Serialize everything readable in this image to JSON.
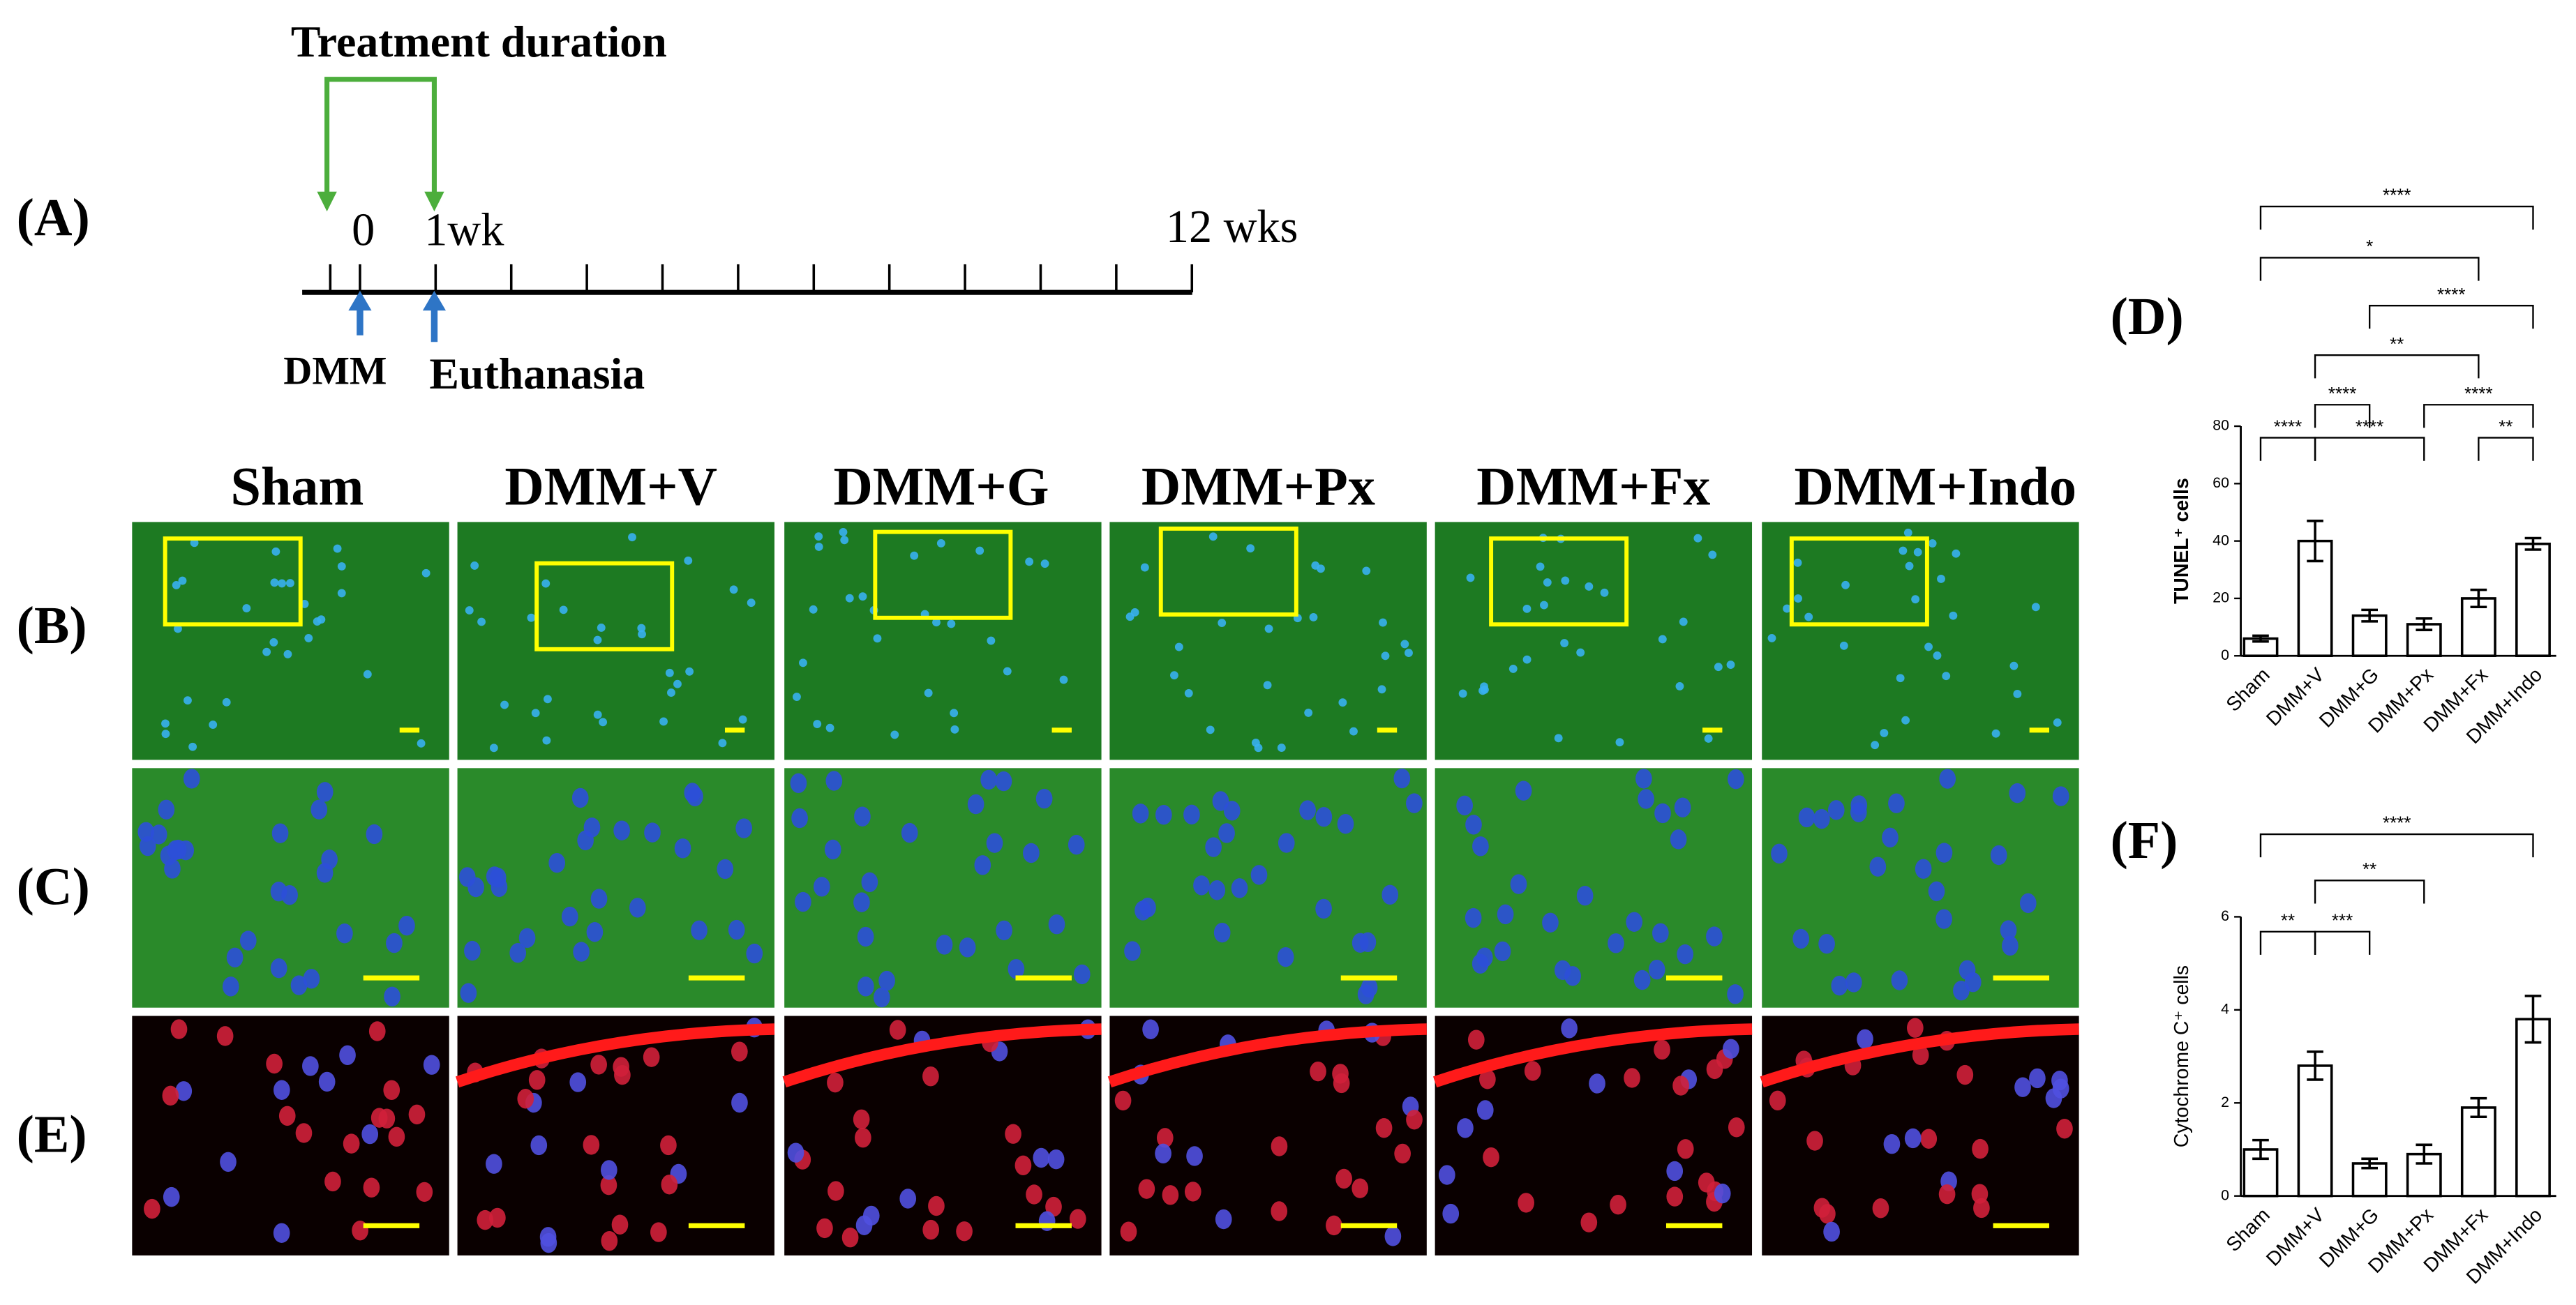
{
  "timeline": {
    "title": "Treatment duration",
    "start": "0",
    "week1": "1wk",
    "end": "12 wks",
    "surgery": "DMM",
    "euthanasia": "Euthanasia"
  },
  "panel_labels": [
    "(A)",
    "(B)",
    "(C)",
    "(D)",
    "(E)",
    "(F)"
  ],
  "columns": [
    "Sham",
    "DMM+V",
    "DMM+G",
    "DMM+Px",
    "DMM+Fx",
    "DMM+Indo"
  ],
  "chart_data": [
    {
      "type": "bar",
      "ylabel": "TUNEL⁺ cells",
      "categories": [
        "Sham",
        "DMM+V",
        "DMM+G",
        "DMM+Px",
        "DMM+Fx",
        "DMM+Indo"
      ],
      "values": [
        6,
        40,
        14,
        11,
        20,
        39
      ],
      "errors": [
        1,
        7,
        2,
        2,
        3,
        2
      ],
      "color": "#ffffff",
      "ylim": [
        0,
        80
      ],
      "yticks": [
        0,
        20,
        40,
        60,
        80
      ],
      "annotations": [
        "****",
        "*",
        "****",
        "**",
        "****",
        "****",
        "****",
        "****",
        "**"
      ]
    },
    {
      "type": "bar",
      "ylabel": "Cytochrome C⁺ cells",
      "categories": [
        "Sham",
        "DMM+V",
        "DMM+G",
        "DMM+Px",
        "DMM+Fx",
        "DMM+Indo"
      ],
      "values": [
        1.0,
        2.8,
        0.7,
        0.9,
        1.9,
        3.8
      ],
      "errors": [
        0.2,
        0.3,
        0.1,
        0.2,
        0.2,
        0.5
      ],
      "color": "#ffffff",
      "ylim": [
        0,
        6
      ],
      "yticks": [
        0,
        2,
        4,
        6
      ],
      "annotations": [
        "****",
        "**",
        "**",
        "***"
      ]
    }
  ]
}
